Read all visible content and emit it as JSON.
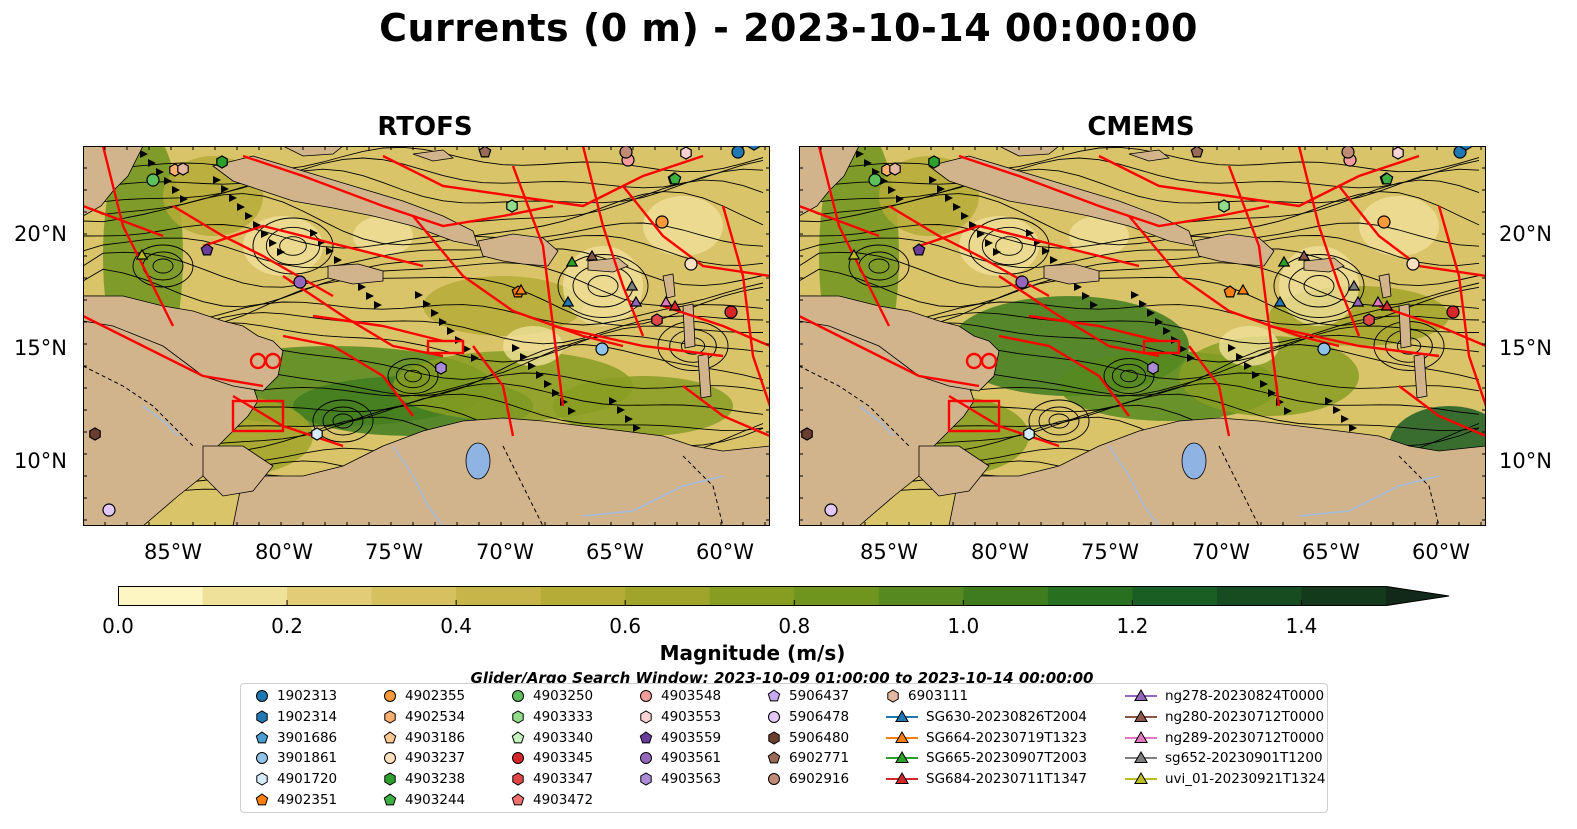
{
  "title": "Currents (0 m) - 2023-10-14 00:00:00",
  "panels": [
    {
      "name": "RTOFS"
    },
    {
      "name": "CMEMS"
    }
  ],
  "lat_labels": [
    "20°N",
    "15°N",
    "10°N"
  ],
  "lon_labels": [
    "85°W",
    "80°W",
    "75°W",
    "70°W",
    "65°W",
    "60°W"
  ],
  "colorbar": {
    "label": "Magnitude (m/s)",
    "ticks": [
      "0.0",
      "0.2",
      "0.4",
      "0.6",
      "0.8",
      "1.0",
      "1.2",
      "1.4"
    ],
    "min": 0.0,
    "max": 1.5,
    "extend": "max",
    "colors": [
      "#fdf6c3",
      "#efe09a",
      "#e2cc78",
      "#d6c05f",
      "#c7b54a",
      "#b5ab37",
      "#a0a42a",
      "#879d22",
      "#6f951f",
      "#56891f",
      "#3f7c20",
      "#28701f",
      "#1b5e24",
      "#174b20",
      "#143a1c",
      "#12291a"
    ]
  },
  "search_window": "Glider/Argo Search Window: 2023-10-09 01:00:00 to 2023-10-14 00:00:00",
  "legend": [
    {
      "label": "1902313",
      "marker": "circle",
      "color": "#1f77b4"
    },
    {
      "label": "1902314",
      "marker": "hexagon",
      "color": "#1f77b4"
    },
    {
      "label": "3901686",
      "marker": "pentagon",
      "color": "#4a9bd1"
    },
    {
      "label": "3901861",
      "marker": "circle",
      "color": "#8fc3ea"
    },
    {
      "label": "4901720",
      "marker": "hexagon",
      "color": "#d7ecfb"
    },
    {
      "label": "4902351",
      "marker": "pentagon",
      "color": "#ff7f0e"
    },
    {
      "label": "4902355",
      "marker": "circle",
      "color": "#ff9a3a"
    },
    {
      "label": "4902534",
      "marker": "hexagon",
      "color": "#ffb070"
    },
    {
      "label": "4903186",
      "marker": "pentagon",
      "color": "#ffc792"
    },
    {
      "label": "4903237",
      "marker": "circle",
      "color": "#ffe1c0"
    },
    {
      "label": "4903238",
      "marker": "hexagon",
      "color": "#2ca02c"
    },
    {
      "label": "4903244",
      "marker": "pentagon",
      "color": "#3cb043"
    },
    {
      "label": "4903250",
      "marker": "circle",
      "color": "#5cc15c"
    },
    {
      "label": "4903333",
      "marker": "hexagon",
      "color": "#90dc8a"
    },
    {
      "label": "4903340",
      "marker": "pentagon",
      "color": "#c6f0bf"
    },
    {
      "label": "4903345",
      "marker": "circle",
      "color": "#d62728"
    },
    {
      "label": "4903347",
      "marker": "hexagon",
      "color": "#e04848"
    },
    {
      "label": "4903472",
      "marker": "pentagon",
      "color": "#f07070"
    },
    {
      "label": "4903548",
      "marker": "circle",
      "color": "#f59c9c"
    },
    {
      "label": "4903553",
      "marker": "hexagon",
      "color": "#fcd2d2"
    },
    {
      "label": "4903559",
      "marker": "pentagon",
      "color": "#6a3d9a"
    },
    {
      "label": "4903561",
      "marker": "circle",
      "color": "#9467bd"
    },
    {
      "label": "4903563",
      "marker": "hexagon",
      "color": "#a98bd6"
    },
    {
      "label": "5906437",
      "marker": "pentagon",
      "color": "#c9a8f0"
    },
    {
      "label": "5906478",
      "marker": "circle",
      "color": "#e1c8f7"
    },
    {
      "label": "5906480",
      "marker": "hexagon",
      "color": "#6b3f2f"
    },
    {
      "label": "6902771",
      "marker": "pentagon",
      "color": "#9b6a55"
    },
    {
      "label": "6902916",
      "marker": "circle",
      "color": "#c08a74"
    },
    {
      "label": "6903111",
      "marker": "hexagon",
      "color": "#e7b7a2"
    },
    {
      "label": "SG630-20230826T2004",
      "marker": "triangle-line",
      "color": "#1f77b4"
    },
    {
      "label": "SG664-20230719T1323",
      "marker": "triangle-line",
      "color": "#ff7f0e"
    },
    {
      "label": "SG665-20230907T2003",
      "marker": "triangle-line",
      "color": "#2ca02c"
    },
    {
      "label": "SG684-20230711T1347",
      "marker": "triangle-line",
      "color": "#d62728"
    },
    {
      "label": "ng278-20230824T0000",
      "marker": "triangle-line",
      "color": "#9467bd"
    },
    {
      "label": "ng280-20230712T0000",
      "marker": "triangle-line",
      "color": "#8c564b"
    },
    {
      "label": "ng289-20230712T0000",
      "marker": "triangle-line",
      "color": "#e377c2"
    },
    {
      "label": "sg652-20230901T1200",
      "marker": "triangle-line",
      "color": "#7f7f7f"
    },
    {
      "label": "uvi_01-20230921T1324",
      "marker": "triangle-line",
      "color": "#bcbd22"
    }
  ],
  "colors": {
    "land": "#d2b48c",
    "eez_lines": "#ff0000",
    "rivers": "#a3bde0"
  }
}
